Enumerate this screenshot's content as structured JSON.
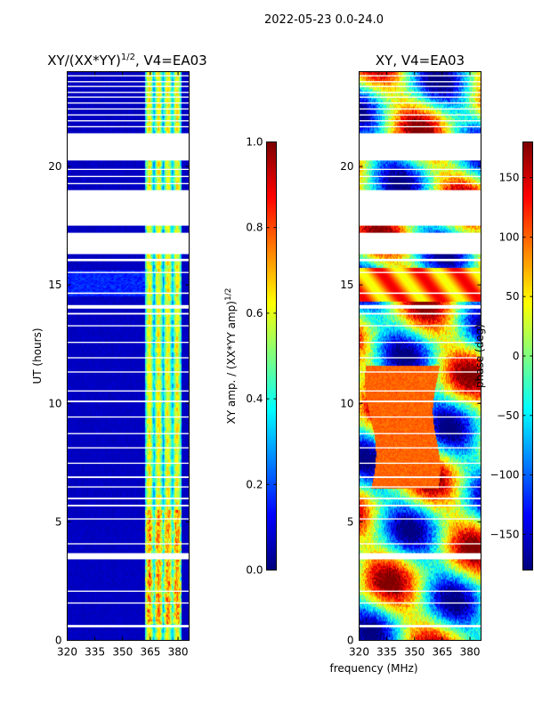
{
  "suptitle": "2022-05-23 0.0-24.0",
  "chart_data": [
    {
      "type": "heatmap",
      "title": "XY/(XX*YY)^1/2, V4=EA03",
      "title_base": "XY/(XX*YY)",
      "title_exp": "1/2",
      "title_tail": ", V4=EA03",
      "xlabel": "",
      "ylabel": "UT (hours)",
      "xlim": [
        320,
        386
      ],
      "ylim": [
        0,
        24
      ],
      "xticks": [
        320,
        335,
        350,
        365,
        380
      ],
      "yticks": [
        0,
        5,
        10,
        15,
        20
      ],
      "colorbar": {
        "label_base": "XY amp. / (XX*YY amp)",
        "label_exp": "1/2",
        "range": [
          0.0,
          1.0
        ],
        "ticks": [
          "0.0",
          "0.2",
          "0.4",
          "0.6",
          "0.8",
          "1.0"
        ],
        "tick_values": [
          0.0,
          0.2,
          0.4,
          0.6,
          0.8,
          1.0
        ]
      },
      "description": "Normalized XY amplitude vs frequency and UT; mostly low (~0.05) with brighter bands near 362-382 MHz"
    },
    {
      "type": "heatmap",
      "title": "XY, V4=EA03",
      "xlabel": "frequency (MHz)",
      "ylabel": "",
      "xlim": [
        320,
        386
      ],
      "ylim": [
        0,
        24
      ],
      "xticks": [
        320,
        335,
        350,
        365,
        380
      ],
      "yticks": [
        0,
        5,
        10,
        15,
        20
      ],
      "colorbar": {
        "label": "phase (deg)",
        "range": [
          -180,
          180
        ],
        "ticks": [
          "150",
          "100",
          "50",
          "0",
          "−50",
          "−100",
          "−150"
        ],
        "tick_values": [
          150,
          100,
          50,
          0,
          -50,
          -100,
          -150
        ]
      },
      "description": "XY phase vs frequency and UT; mixed phases, coherent ~110 deg region between 330-360 MHz at 6.5-11.5 UT"
    }
  ],
  "flagged_ut_ranges": [
    [
      0.55,
      0.65
    ],
    [
      1.55,
      1.6
    ],
    [
      2.05,
      2.1
    ],
    [
      3.42,
      3.68
    ],
    [
      4.05,
      4.1
    ],
    [
      5.1,
      5.15
    ],
    [
      5.65,
      5.72
    ],
    [
      5.95,
      6.02
    ],
    [
      6.45,
      6.5
    ],
    [
      6.85,
      6.92
    ],
    [
      7.45,
      7.5
    ],
    [
      8.1,
      8.15
    ],
    [
      8.7,
      8.75
    ],
    [
      9.4,
      9.45
    ],
    [
      10.05,
      10.12
    ],
    [
      10.5,
      10.55
    ],
    [
      11.3,
      11.35
    ],
    [
      11.9,
      11.95
    ],
    [
      12.55,
      12.6
    ],
    [
      13.25,
      13.3
    ],
    [
      13.75,
      13.82
    ],
    [
      14.0,
      14.15
    ],
    [
      14.62,
      14.68
    ],
    [
      15.5,
      15.55
    ],
    [
      16.0,
      16.1
    ],
    [
      16.3,
      17.2
    ],
    [
      17.5,
      19.0
    ],
    [
      19.25,
      19.3
    ],
    [
      19.55,
      19.6
    ],
    [
      19.85,
      19.9
    ],
    [
      20.25,
      21.4
    ],
    [
      21.65,
      21.7
    ],
    [
      21.9,
      21.95
    ],
    [
      22.15,
      22.2
    ],
    [
      22.4,
      22.45
    ],
    [
      22.65,
      22.7
    ],
    [
      22.9,
      22.95
    ],
    [
      23.1,
      23.15
    ],
    [
      23.35,
      23.4
    ],
    [
      23.55,
      23.6
    ],
    [
      23.8,
      23.85
    ]
  ]
}
